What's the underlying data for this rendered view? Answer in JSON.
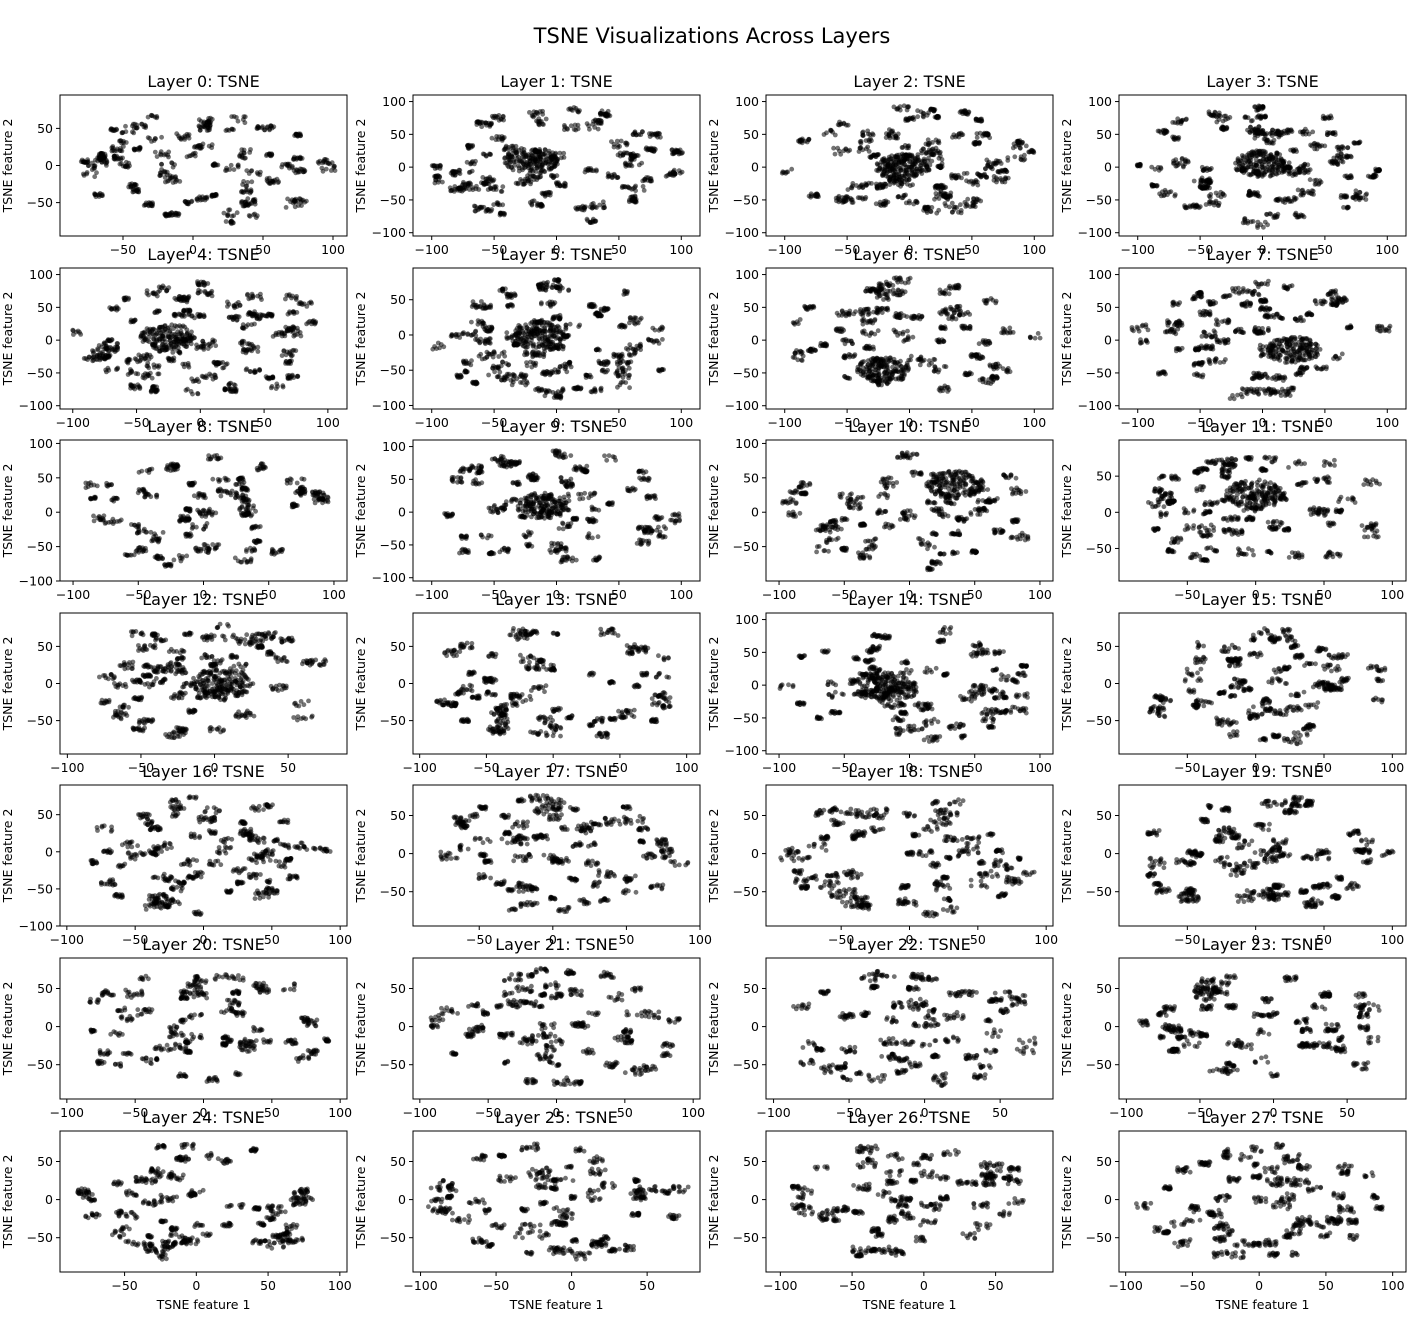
{
  "figure": {
    "title": "TSNE Visualizations Across Layers"
  },
  "style": {
    "point_color": "#000000",
    "point_opacity": 0.55,
    "axes_color": "#000000"
  },
  "chart_data": {
    "type": "scatter",
    "layout": {
      "rows": 7,
      "cols": 4
    },
    "subplots": [
      {
        "title": "Layer 0: TSNE",
        "xlabel": "",
        "ylabel": "TSNE feature 2",
        "xticks": [
          -50,
          0,
          50,
          100
        ],
        "yticks": [
          -50,
          0,
          50
        ],
        "xlim": [
          -95,
          110
        ],
        "ylim": [
          -95,
          95
        ],
        "central_blob": null
      },
      {
        "title": "Layer 1: TSNE",
        "xlabel": "",
        "ylabel": "TSNE feature 2",
        "xticks": [
          -100,
          -50,
          0,
          50,
          100
        ],
        "yticks": [
          -100,
          -50,
          0,
          50,
          100
        ],
        "xlim": [
          -115,
          115
        ],
        "ylim": [
          -105,
          110
        ],
        "central_blob": [
          -20,
          10
        ]
      },
      {
        "title": "Layer 2: TSNE",
        "xlabel": "",
        "ylabel": "TSNE feature 2",
        "xticks": [
          -100,
          -50,
          0,
          50,
          100
        ],
        "yticks": [
          -100,
          -50,
          0,
          50,
          100
        ],
        "xlim": [
          -115,
          115
        ],
        "ylim": [
          -105,
          110
        ],
        "central_blob": [
          -5,
          0
        ]
      },
      {
        "title": "Layer 3: TSNE",
        "xlabel": "",
        "ylabel": "TSNE feature 2",
        "xticks": [
          -100,
          -50,
          0,
          50,
          100
        ],
        "yticks": [
          -100,
          -50,
          0,
          50,
          100
        ],
        "xlim": [
          -115,
          115
        ],
        "ylim": [
          -105,
          110
        ],
        "central_blob": [
          0,
          5
        ]
      },
      {
        "title": "Layer 4: TSNE",
        "xlabel": "",
        "ylabel": "TSNE feature 2",
        "xticks": [
          -100,
          -50,
          0,
          50,
          100
        ],
        "yticks": [
          -100,
          -50,
          0,
          50,
          100
        ],
        "xlim": [
          -110,
          115
        ],
        "ylim": [
          -105,
          110
        ],
        "central_blob": [
          -25,
          5
        ]
      },
      {
        "title": "Layer 5: TSNE",
        "xlabel": "",
        "ylabel": "TSNE feature 2",
        "xticks": [
          -100,
          -50,
          0,
          50,
          100
        ],
        "yticks": [
          -100,
          -50,
          0,
          50
        ],
        "xlim": [
          -115,
          115
        ],
        "ylim": [
          -105,
          95
        ],
        "central_blob": [
          -15,
          0
        ]
      },
      {
        "title": "Layer 6: TSNE",
        "xlabel": "",
        "ylabel": "TSNE feature 2",
        "xticks": [
          -100,
          -50,
          0,
          50,
          100
        ],
        "yticks": [
          -100,
          -50,
          0,
          50,
          100
        ],
        "xlim": [
          -115,
          115
        ],
        "ylim": [
          -105,
          110
        ],
        "central_blob": [
          -20,
          -45
        ]
      },
      {
        "title": "Layer 7: TSNE",
        "xlabel": "",
        "ylabel": "TSNE feature 2",
        "xticks": [
          -100,
          -50,
          0,
          50,
          100
        ],
        "yticks": [
          -100,
          -50,
          0,
          50,
          100
        ],
        "xlim": [
          -115,
          115
        ],
        "ylim": [
          -105,
          110
        ],
        "central_blob": [
          25,
          -15
        ]
      },
      {
        "title": "Layer 8: TSNE",
        "xlabel": "",
        "ylabel": "TSNE feature 2",
        "xticks": [
          -100,
          -50,
          0,
          50,
          100
        ],
        "yticks": [
          -100,
          -50,
          0,
          50,
          100
        ],
        "xlim": [
          -110,
          110
        ],
        "ylim": [
          -100,
          105
        ],
        "central_blob": null
      },
      {
        "title": "Layer 9: TSNE",
        "xlabel": "",
        "ylabel": "TSNE feature 2",
        "xticks": [
          -100,
          -50,
          0,
          50,
          100
        ],
        "yticks": [
          -100,
          -50,
          0,
          50,
          100
        ],
        "xlim": [
          -115,
          115
        ],
        "ylim": [
          -105,
          110
        ],
        "central_blob": [
          -10,
          10
        ]
      },
      {
        "title": "Layer 10: TSNE",
        "xlabel": "",
        "ylabel": "TSNE feature 2",
        "xticks": [
          -100,
          -50,
          0,
          50,
          100
        ],
        "yticks": [
          -50,
          0,
          50,
          100
        ],
        "xlim": [
          -110,
          110
        ],
        "ylim": [
          -100,
          105
        ],
        "central_blob": [
          35,
          40
        ]
      },
      {
        "title": "Layer 11: TSNE",
        "xlabel": "",
        "ylabel": "TSNE feature 2",
        "xticks": [
          -50,
          0,
          50,
          100
        ],
        "yticks": [
          -50,
          0,
          50
        ],
        "xlim": [
          -100,
          110
        ],
        "ylim": [
          -95,
          100
        ],
        "central_blob": [
          0,
          25
        ]
      },
      {
        "title": "Layer 12: TSNE",
        "xlabel": "",
        "ylabel": "TSNE feature 2",
        "xticks": [
          -100,
          -50,
          0,
          50
        ],
        "yticks": [
          -50,
          0,
          50
        ],
        "xlim": [
          -105,
          90
        ],
        "ylim": [
          -95,
          95
        ],
        "central_blob": [
          5,
          0
        ]
      },
      {
        "title": "Layer 13: TSNE",
        "xlabel": "",
        "ylabel": "TSNE feature 2",
        "xticks": [
          -100,
          -50,
          0,
          50,
          100
        ],
        "yticks": [
          -50,
          0,
          50
        ],
        "xlim": [
          -105,
          110
        ],
        "ylim": [
          -95,
          95
        ],
        "central_blob": null
      },
      {
        "title": "Layer 14: TSNE",
        "xlabel": "",
        "ylabel": "TSNE feature 2",
        "xticks": [
          -100,
          -50,
          0,
          50,
          100
        ],
        "yticks": [
          -100,
          -50,
          0,
          50,
          100
        ],
        "xlim": [
          -110,
          110
        ],
        "ylim": [
          -105,
          110
        ],
        "central_blob": [
          -15,
          -5
        ]
      },
      {
        "title": "Layer 15: TSNE",
        "xlabel": "",
        "ylabel": "TSNE feature 2",
        "xticks": [
          -50,
          0,
          50,
          100
        ],
        "yticks": [
          -50,
          0,
          50
        ],
        "xlim": [
          -100,
          110
        ],
        "ylim": [
          -95,
          95
        ],
        "central_blob": null
      },
      {
        "title": "Layer 16: TSNE",
        "xlabel": "",
        "ylabel": "TSNE feature 2",
        "xticks": [
          -100,
          -50,
          0,
          50,
          100
        ],
        "yticks": [
          -100,
          -50,
          0,
          50
        ],
        "xlim": [
          -105,
          105
        ],
        "ylim": [
          -100,
          90
        ],
        "central_blob": null
      },
      {
        "title": "Layer 17: TSNE",
        "xlabel": "",
        "ylabel": "TSNE feature 2",
        "xticks": [
          -50,
          0,
          50,
          100
        ],
        "yticks": [
          -50,
          0,
          50
        ],
        "xlim": [
          -95,
          100
        ],
        "ylim": [
          -95,
          90
        ],
        "central_blob": null
      },
      {
        "title": "Layer 18: TSNE",
        "xlabel": "",
        "ylabel": "TSNE feature 2",
        "xticks": [
          -50,
          0,
          50,
          100
        ],
        "yticks": [
          -50,
          0,
          50
        ],
        "xlim": [
          -105,
          105
        ],
        "ylim": [
          -95,
          90
        ],
        "central_blob": null
      },
      {
        "title": "Layer 19: TSNE",
        "xlabel": "",
        "ylabel": "TSNE feature 2",
        "xticks": [
          -50,
          0,
          50,
          100
        ],
        "yticks": [
          -50,
          0,
          50
        ],
        "xlim": [
          -100,
          110
        ],
        "ylim": [
          -95,
          90
        ],
        "central_blob": null
      },
      {
        "title": "Layer 20: TSNE",
        "xlabel": "",
        "ylabel": "TSNE feature 2",
        "xticks": [
          -100,
          -50,
          0,
          50,
          100
        ],
        "yticks": [
          -50,
          0,
          50
        ],
        "xlim": [
          -105,
          105
        ],
        "ylim": [
          -95,
          90
        ],
        "central_blob": null
      },
      {
        "title": "Layer 21: TSNE",
        "xlabel": "",
        "ylabel": "TSNE feature 2",
        "xticks": [
          -100,
          -50,
          0,
          50,
          100
        ],
        "yticks": [
          -50,
          0,
          50
        ],
        "xlim": [
          -105,
          105
        ],
        "ylim": [
          -95,
          90
        ],
        "central_blob": null
      },
      {
        "title": "Layer 22: TSNE",
        "xlabel": "",
        "ylabel": "TSNE feature 2",
        "xticks": [
          -100,
          -50,
          0,
          50
        ],
        "yticks": [
          -50,
          0,
          50
        ],
        "xlim": [
          -105,
          85
        ],
        "ylim": [
          -95,
          90
        ],
        "central_blob": null
      },
      {
        "title": "Layer 23: TSNE",
        "xlabel": "",
        "ylabel": "TSNE feature 2",
        "xticks": [
          -100,
          -50,
          0,
          50
        ],
        "yticks": [
          -50,
          0,
          50
        ],
        "xlim": [
          -105,
          90
        ],
        "ylim": [
          -95,
          90
        ],
        "central_blob": null
      },
      {
        "title": "Layer 24: TSNE",
        "xlabel": "TSNE feature 1",
        "ylabel": "TSNE feature 2",
        "xticks": [
          -50,
          0,
          50,
          100
        ],
        "yticks": [
          -50,
          0,
          50
        ],
        "xlim": [
          -95,
          105
        ],
        "ylim": [
          -95,
          90
        ],
        "central_blob": null
      },
      {
        "title": "Layer 25: TSNE",
        "xlabel": "TSNE feature 1",
        "ylabel": "TSNE feature 2",
        "xticks": [
          -100,
          -50,
          0,
          50
        ],
        "yticks": [
          -50,
          0,
          50
        ],
        "xlim": [
          -105,
          85
        ],
        "ylim": [
          -95,
          90
        ],
        "central_blob": null
      },
      {
        "title": "Layer 26: TSNE",
        "xlabel": "TSNE feature 1",
        "ylabel": "TSNE feature 2",
        "xticks": [
          -100,
          -50,
          0,
          50
        ],
        "yticks": [
          -50,
          0,
          50
        ],
        "xlim": [
          -110,
          90
        ],
        "ylim": [
          -95,
          90
        ],
        "central_blob": null
      },
      {
        "title": "Layer 27: TSNE",
        "xlabel": "TSNE feature 1",
        "ylabel": "TSNE feature 2",
        "xticks": [
          -100,
          -50,
          0,
          50,
          100
        ],
        "yticks": [
          -50,
          0,
          50
        ],
        "xlim": [
          -105,
          110
        ],
        "ylim": [
          -95,
          90
        ],
        "central_blob": null
      }
    ]
  }
}
